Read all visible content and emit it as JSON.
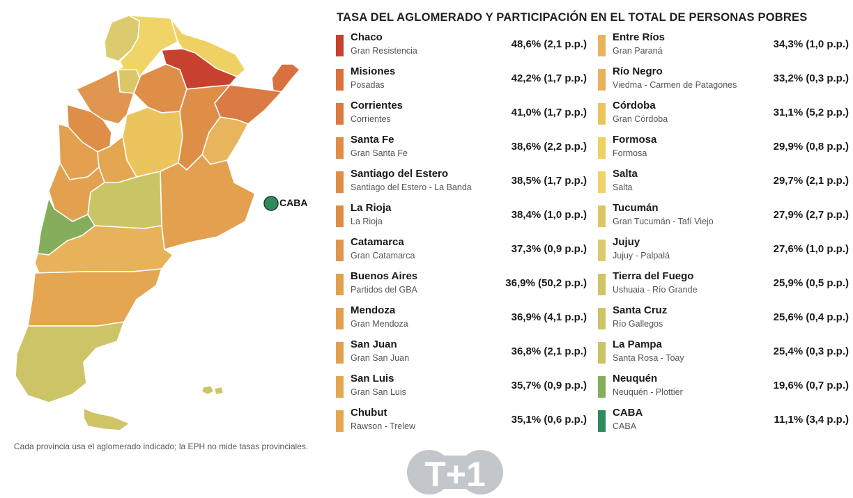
{
  "title": "TASA DEL AGLOMERADO Y PARTICIPACIÓN EN EL TOTAL DE PERSONAS POBRES",
  "footnote": "Cada provincia usa el aglomerado indicado; la EPH no mide tasas provinciales.",
  "map": {
    "caba_label": "CABA",
    "colors": {
      "chaco": "#c8412f",
      "misiones": "#d9703e",
      "corrientes": "#db7a42",
      "santa_fe": "#df8e48",
      "santiago": "#df8e48",
      "la_rioja": "#df8e48",
      "catamarca": "#e09650",
      "buenos_aires": "#e3a04f",
      "mendoza": "#e3a04f",
      "san_juan": "#e3a04f",
      "san_luis": "#e5a652",
      "chubut": "#e5a652",
      "entre_rios": "#e9b55c",
      "rio_negro": "#e8b25a",
      "cordoba": "#ecc45e",
      "formosa": "#efd062",
      "salta": "#f0d468",
      "tucuman": "#dcc766",
      "jujuy": "#dccb6e",
      "tierra_del_fuego": "#cfc466",
      "santa_cruz": "#ccc466",
      "la_pampa": "#c9c566",
      "neuquen": "#85ae5c",
      "caba": "#2f8a5c"
    }
  },
  "legend": {
    "left": [
      {
        "province": "Chaco",
        "agglomerate": "Gran Resistencia",
        "value": "48,6% (2,1 p.p.)",
        "color": "#c8412f"
      },
      {
        "province": "Misiones",
        "agglomerate": "Posadas",
        "value": "42,2% (1,7 p.p.)",
        "color": "#d9703e"
      },
      {
        "province": "Corrientes",
        "agglomerate": "Corrientes",
        "value": "41,0% (1,7 p.p.)",
        "color": "#db7a42"
      },
      {
        "province": "Santa Fe",
        "agglomerate": "Gran Santa Fe",
        "value": "38,6% (2,2 p.p.)",
        "color": "#df8e48"
      },
      {
        "province": "Santiago del Estero",
        "agglomerate": "Santiago del Estero - La Banda",
        "value": "38,5% (1,7 p.p.)",
        "color": "#df8e48"
      },
      {
        "province": "La Rioja",
        "agglomerate": "La Rioja",
        "value": "38,4% (1,0 p.p.)",
        "color": "#df8e48"
      },
      {
        "province": "Catamarca",
        "agglomerate": "Gran Catamarca",
        "value": "37,3% (0,9 p.p.)",
        "color": "#e09650"
      },
      {
        "province": "Buenos Aires",
        "agglomerate": "Partidos del GBA",
        "value": "36,9% (50,2 p.p.)",
        "color": "#e3a04f"
      },
      {
        "province": "Mendoza",
        "agglomerate": "Gran Mendoza",
        "value": "36,9% (4,1 p.p.)",
        "color": "#e3a04f"
      },
      {
        "province": "San Juan",
        "agglomerate": "Gran San Juan",
        "value": "36,8% (2,1 p.p.)",
        "color": "#e3a04f"
      },
      {
        "province": "San Luis",
        "agglomerate": "Gran San Luis",
        "value": "35,7% (0,9 p.p.)",
        "color": "#e5a652"
      },
      {
        "province": "Chubut",
        "agglomerate": "Rawson - Trelew",
        "value": "35,1% (0,6 p.p.)",
        "color": "#e5a652"
      }
    ],
    "right": [
      {
        "province": "Entre Ríos",
        "agglomerate": "Gran Paraná",
        "value": "34,3% (1,0 p.p.)",
        "color": "#e9b55c"
      },
      {
        "province": "Río Negro",
        "agglomerate": "Viedma - Carmen de Patagones",
        "value": "33,2% (0,3 p.p.)",
        "color": "#e8b25a"
      },
      {
        "province": "Córdoba",
        "agglomerate": "Gran Córdoba",
        "value": "31,1% (5,2 p.p.)",
        "color": "#ecc45e"
      },
      {
        "province": "Formosa",
        "agglomerate": "Formosa",
        "value": "29,9% (0,8 p.p.)",
        "color": "#efd062"
      },
      {
        "province": "Salta",
        "agglomerate": "Salta",
        "value": "29,7% (2,1 p.p.)",
        "color": "#f0d468"
      },
      {
        "province": "Tucumán",
        "agglomerate": "Gran Tucumán - Tafí Viejo",
        "value": "27,9% (2,7 p.p.)",
        "color": "#dcc766"
      },
      {
        "province": "Jujuy",
        "agglomerate": "Jujuy - Palpalá",
        "value": "27,6% (1,0 p.p.)",
        "color": "#dccb6e"
      },
      {
        "province": "Tierra del Fuego",
        "agglomerate": "Ushuaia - Río Grande",
        "value": "25,9% (0,5 p.p.)",
        "color": "#cfc466"
      },
      {
        "province": "Santa Cruz",
        "agglomerate": "Río Gallegos",
        "value": "25,6% (0,4 p.p.)",
        "color": "#ccc466"
      },
      {
        "province": "La Pampa",
        "agglomerate": "Santa Rosa - Toay",
        "value": "25,4% (0,3 p.p.)",
        "color": "#c9c566"
      },
      {
        "province": "Neuquén",
        "agglomerate": "Neuquén - Plottier",
        "value": "19,6% (0,7 p.p.)",
        "color": "#85ae5c"
      },
      {
        "province": "CABA",
        "agglomerate": "CABA",
        "value": "11,1% (3,4 p.p.)",
        "color": "#2f8a5c"
      }
    ]
  },
  "logo": {
    "text": "T+1",
    "color": "#c3c6cb"
  }
}
